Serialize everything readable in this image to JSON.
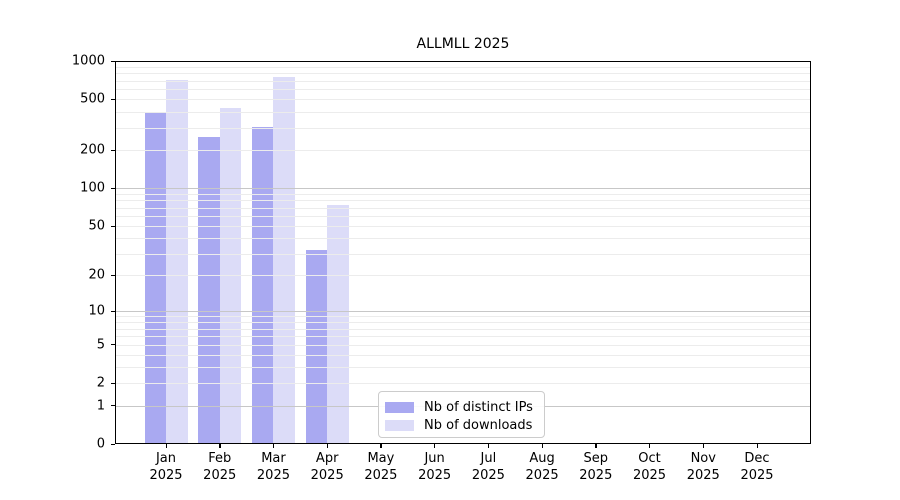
{
  "title": "ALLMLL 2025",
  "colors": {
    "bar_ips": "#a9a9f1",
    "bar_downloads": "#dcdcf8",
    "grid_major": "#c7c7c7",
    "grid_minor": "#ececec",
    "spine": "#000000"
  },
  "legend": {
    "items": [
      {
        "label": "Nb of distinct IPs",
        "color_key": "bar_ips"
      },
      {
        "label": "Nb of downloads",
        "color_key": "bar_downloads"
      }
    ]
  },
  "chart_data": {
    "type": "bar",
    "title": "ALLMLL 2025",
    "categories": [
      "Jan 2025",
      "Feb 2025",
      "Mar 2025",
      "Apr 2025",
      "May 2025",
      "Jun 2025",
      "Jul 2025",
      "Aug 2025",
      "Sep 2025",
      "Oct 2025",
      "Nov 2025",
      "Dec 2025"
    ],
    "series": [
      {
        "name": "Nb of distinct IPs",
        "values": [
          400,
          253,
          304,
          32,
          0,
          0,
          0,
          0,
          0,
          0,
          0,
          0
        ]
      },
      {
        "name": "Nb of downloads",
        "values": [
          710,
          427,
          750,
          73,
          0,
          0,
          0,
          0,
          0,
          0,
          0,
          0
        ]
      }
    ],
    "yscale": "log(value+1)",
    "ylim": [
      0,
      1000
    ],
    "yticks": [
      1000,
      500,
      200,
      100,
      50,
      20,
      10,
      5,
      2,
      1,
      0
    ],
    "grid": "horizontal major+minor",
    "legend_position": "lower center"
  }
}
